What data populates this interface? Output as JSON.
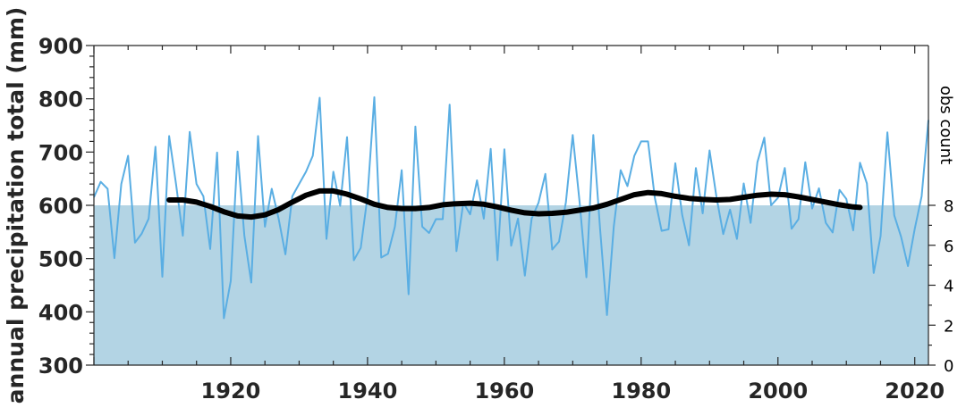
{
  "chart_data": {
    "type": "line",
    "xlabel": "",
    "ylabel": "annual precipitation total (mm)",
    "y2label": "obs count",
    "xlim": [
      1900,
      2022
    ],
    "ylim": [
      300,
      900
    ],
    "y2lim": [
      0,
      16
    ],
    "grid": false,
    "xticks": [
      "1920",
      "1940",
      "1960",
      "1980",
      "2000",
      "2020"
    ],
    "yticks": [
      "300",
      "400",
      "500",
      "600",
      "700",
      "800",
      "900"
    ],
    "y2ticks": [
      "0",
      "2",
      "4",
      "6",
      "8"
    ],
    "colors": {
      "annual": "#5aaee3",
      "smooth": "#000000",
      "obs_count": "#b3d4e4"
    },
    "obs_count": {
      "x": [
        1900,
        2022
      ],
      "values": [
        8,
        8
      ]
    },
    "series": [
      {
        "x": [
          1900,
          1901,
          1902,
          1903,
          1904,
          1905,
          1906,
          1907,
          1908,
          1909,
          1910,
          1911,
          1912,
          1913,
          1914,
          1915,
          1916,
          1917,
          1918,
          1919,
          1920,
          1921,
          1922,
          1923,
          1924,
          1925,
          1926,
          1927,
          1928,
          1929,
          1930,
          1931,
          1932,
          1933,
          1934,
          1935,
          1936,
          1937,
          1938,
          1939,
          1940,
          1941,
          1942,
          1943,
          1944,
          1945,
          1946,
          1947,
          1948,
          1949,
          1950,
          1951,
          1952,
          1953,
          1954,
          1955,
          1956,
          1957,
          1958,
          1959,
          1960,
          1961,
          1962,
          1963,
          1964,
          1965,
          1966,
          1967,
          1968,
          1969,
          1970,
          1971,
          1972,
          1973,
          1974,
          1975,
          1976,
          1977,
          1978,
          1979,
          1980,
          1981,
          1982,
          1983,
          1984,
          1985,
          1986,
          1987,
          1988,
          1989,
          1990,
          1991,
          1992,
          1993,
          1994,
          1995,
          1996,
          1997,
          1998,
          1999,
          2000,
          2001,
          2002,
          2003,
          2004,
          2005,
          2006,
          2007,
          2008,
          2009,
          2010,
          2011,
          2012,
          2013,
          2014,
          2015,
          2016,
          2017,
          2018,
          2019,
          2020,
          2021,
          2022
        ],
        "values": [
          615,
          644,
          631,
          501,
          640,
          693,
          530,
          547,
          575,
          710,
          466,
          730,
          640,
          543,
          738,
          640,
          617,
          518,
          699,
          388,
          458,
          701,
          543,
          455,
          730,
          560,
          631,
          575,
          508,
          617,
          640,
          663,
          693,
          802,
          537,
          663,
          599,
          728,
          497,
          520,
          617,
          803,
          502,
          509,
          560,
          666,
          433,
          748,
          560,
          548,
          574,
          574,
          789,
          514,
          605,
          583,
          647,
          575,
          706,
          497,
          705,
          524,
          575,
          468,
          575,
          605,
          659,
          517,
          532,
          606,
          732,
          606,
          465,
          732,
          556,
          394,
          560,
          666,
          636,
          693,
          720,
          720,
          614,
          552,
          555,
          679,
          582,
          525,
          670,
          585,
          703,
          617,
          546,
          592,
          537,
          641,
          567,
          681,
          727,
          600,
          614,
          670,
          556,
          574,
          681,
          594,
          632,
          567,
          549,
          629,
          612,
          553,
          680,
          641,
          473,
          542,
          737,
          581,
          541,
          486,
          556,
          617,
          760
        ]
      },
      {
        "x": [
          1911,
          1913,
          1915,
          1917,
          1919,
          1921,
          1923,
          1925,
          1927,
          1929,
          1931,
          1933,
          1935,
          1937,
          1939,
          1941,
          1943,
          1945,
          1947,
          1949,
          1951,
          1953,
          1955,
          1957,
          1959,
          1961,
          1963,
          1965,
          1967,
          1969,
          1971,
          1973,
          1975,
          1977,
          1979,
          1981,
          1983,
          1985,
          1987,
          1989,
          1991,
          1993,
          1995,
          1997,
          1999,
          2001,
          2003,
          2005,
          2007,
          2009,
          2011,
          2012
        ],
        "values": [
          610,
          610,
          606,
          598,
          588,
          580,
          578,
          582,
          592,
          606,
          619,
          627,
          627,
          621,
          612,
          602,
          596,
          594,
          594,
          596,
          601,
          603,
          604,
          602,
          597,
          591,
          586,
          584,
          585,
          587,
          591,
          595,
          602,
          611,
          620,
          624,
          622,
          617,
          613,
          611,
          610,
          611,
          615,
          619,
          621,
          620,
          616,
          611,
          606,
          601,
          597,
          596
        ]
      }
    ]
  }
}
